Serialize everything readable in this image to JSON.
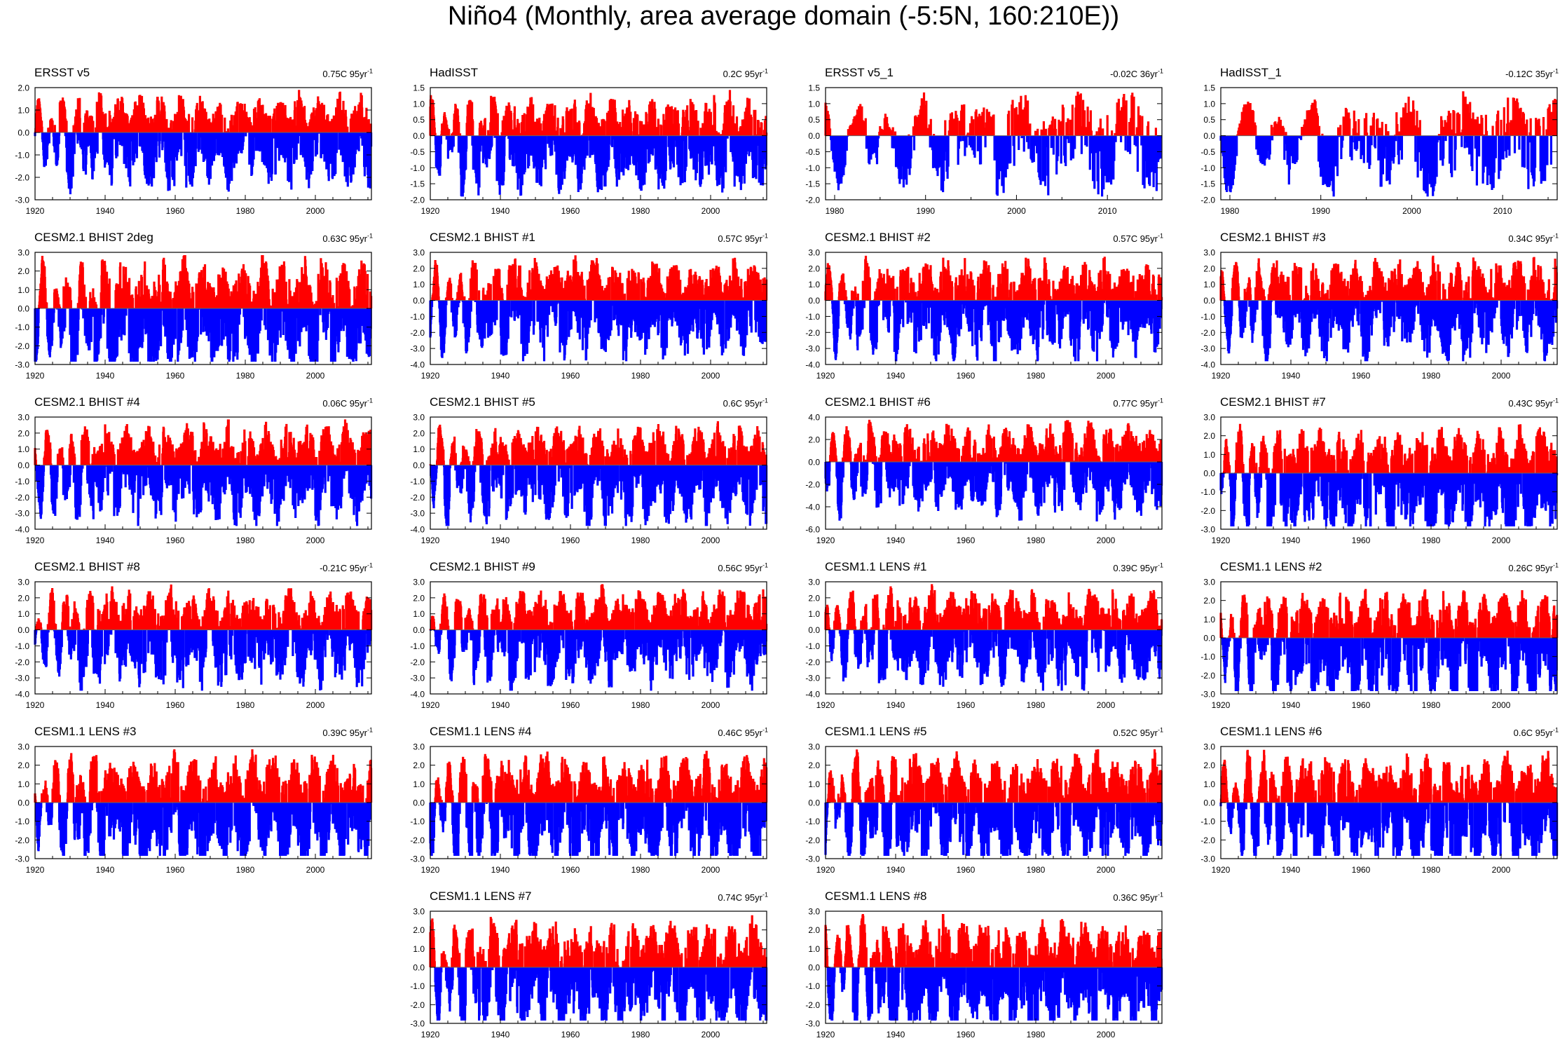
{
  "figure": {
    "title": "Niño4 (Monthly, area average domain (-5:5N, 160:210E))",
    "positive_color": "#ff0000",
    "negative_color": "#0000ff"
  },
  "chart_data": [
    {
      "type": "area",
      "title": "ERSST v5",
      "trend": "0.75C 95yr",
      "trend_unit_exp": "-1",
      "x_range": [
        1920,
        2016
      ],
      "xticks": [
        1920,
        1940,
        1960,
        1980,
        2000
      ],
      "ylim": [
        -3.0,
        2.0
      ],
      "yticks": [
        2.0,
        1.0,
        0.0,
        -1.0,
        -2.0,
        -3.0
      ],
      "ytick_labels": [
        "2.0",
        "1.0",
        "0.0",
        "-1.0",
        "-2.0",
        "-3.0"
      ],
      "baseline": 0.0
    },
    {
      "type": "area",
      "title": "HadISST",
      "trend": "0.2C 95yr",
      "trend_unit_exp": "-1",
      "x_range": [
        1920,
        2016
      ],
      "xticks": [
        1920,
        1940,
        1960,
        1980,
        2000
      ],
      "ylim": [
        -2.0,
        1.5
      ],
      "yticks": [
        1.5,
        1.0,
        0.5,
        0.0,
        -0.5,
        -1.0,
        -1.5,
        -2.0
      ],
      "ytick_labels": [
        "1.5",
        "1.0",
        "0.5",
        "0.0",
        "-0.5",
        "-1.0",
        "-1.5",
        "-2.0"
      ],
      "baseline": 0.0
    },
    {
      "type": "area",
      "title": "ERSST v5_1",
      "trend": "-0.02C 36yr",
      "trend_unit_exp": "-1",
      "x_range": [
        1979,
        2016
      ],
      "xticks": [
        1980,
        1990,
        2000,
        2010
      ],
      "ylim": [
        -2.0,
        1.5
      ],
      "yticks": [
        1.5,
        1.0,
        0.5,
        0.0,
        -0.5,
        -1.0,
        -1.5,
        -2.0
      ],
      "ytick_labels": [
        "1.5",
        "1.0",
        "0.5",
        "0.0",
        "-0.5",
        "-1.0",
        "-1.5",
        "-2.0"
      ],
      "baseline": 0.0
    },
    {
      "type": "area",
      "title": "HadISST_1",
      "trend": "-0.12C 35yr",
      "trend_unit_exp": "-1",
      "x_range": [
        1979,
        2016
      ],
      "xticks": [
        1980,
        1990,
        2000,
        2010
      ],
      "ylim": [
        -2.0,
        1.5
      ],
      "yticks": [
        1.5,
        1.0,
        0.5,
        0.0,
        -0.5,
        -1.0,
        -1.5,
        -2.0
      ],
      "ytick_labels": [
        "1.5",
        "1.0",
        "0.5",
        "0.0",
        "-0.5",
        "-1.0",
        "-1.5",
        "-2.0"
      ],
      "baseline": 0.0
    },
    {
      "type": "area",
      "title": "CESM2.1 BHIST 2deg",
      "trend": "0.63C 95yr",
      "trend_unit_exp": "-1",
      "x_range": [
        1920,
        2016
      ],
      "xticks": [
        1920,
        1940,
        1960,
        1980,
        2000
      ],
      "ylim": [
        -3.0,
        3.0
      ],
      "yticks": [
        3.0,
        2.0,
        1.0,
        0.0,
        -1.0,
        -2.0,
        -3.0
      ],
      "ytick_labels": [
        "3.0",
        "2.0",
        "1.0",
        "0.0",
        "-1.0",
        "-2.0",
        "-3.0"
      ],
      "baseline": 0.0
    },
    {
      "type": "area",
      "title": "CESM2.1 BHIST #1",
      "trend": "0.57C 95yr",
      "trend_unit_exp": "-1",
      "x_range": [
        1920,
        2016
      ],
      "xticks": [
        1920,
        1940,
        1960,
        1980,
        2000
      ],
      "ylim": [
        -4.0,
        3.0
      ],
      "yticks": [
        3.0,
        2.0,
        1.0,
        0.0,
        -1.0,
        -2.0,
        -3.0,
        -4.0
      ],
      "ytick_labels": [
        "3.0",
        "2.0",
        "1.0",
        "0.0",
        "-1.0",
        "-2.0",
        "-3.0",
        "-4.0"
      ],
      "baseline": 0.0
    },
    {
      "type": "area",
      "title": "CESM2.1 BHIST #2",
      "trend": "0.57C 95yr",
      "trend_unit_exp": "-1",
      "x_range": [
        1920,
        2016
      ],
      "xticks": [
        1920,
        1940,
        1960,
        1980,
        2000
      ],
      "ylim": [
        -4.0,
        3.0
      ],
      "yticks": [
        3.0,
        2.0,
        1.0,
        0.0,
        -1.0,
        -2.0,
        -3.0,
        -4.0
      ],
      "ytick_labels": [
        "3.0",
        "2.0",
        "1.0",
        "0.0",
        "-1.0",
        "-2.0",
        "-3.0",
        "-4.0"
      ],
      "baseline": 0.0
    },
    {
      "type": "area",
      "title": "CESM2.1 BHIST #3",
      "trend": "0.34C 95yr",
      "trend_unit_exp": "-1",
      "x_range": [
        1920,
        2016
      ],
      "xticks": [
        1920,
        1940,
        1960,
        1980,
        2000
      ],
      "ylim": [
        -4.0,
        3.0
      ],
      "yticks": [
        3.0,
        2.0,
        1.0,
        0.0,
        -1.0,
        -2.0,
        -3.0,
        -4.0
      ],
      "ytick_labels": [
        "3.0",
        "2.0",
        "1.0",
        "0.0",
        "-1.0",
        "-2.0",
        "-3.0",
        "-4.0"
      ],
      "baseline": 0.0
    },
    {
      "type": "area",
      "title": "CESM2.1 BHIST #4",
      "trend": "0.06C 95yr",
      "trend_unit_exp": "-1",
      "x_range": [
        1920,
        2016
      ],
      "xticks": [
        1920,
        1940,
        1960,
        1980,
        2000
      ],
      "ylim": [
        -4.0,
        3.0
      ],
      "yticks": [
        3.0,
        2.0,
        1.0,
        0.0,
        -1.0,
        -2.0,
        -3.0,
        -4.0
      ],
      "ytick_labels": [
        "3.0",
        "2.0",
        "1.0",
        "0.0",
        "-1.0",
        "-2.0",
        "-3.0",
        "-4.0"
      ],
      "baseline": 0.0
    },
    {
      "type": "area",
      "title": "CESM2.1 BHIST #5",
      "trend": "0.6C 95yr",
      "trend_unit_exp": "-1",
      "x_range": [
        1920,
        2016
      ],
      "xticks": [
        1920,
        1940,
        1960,
        1980,
        2000
      ],
      "ylim": [
        -4.0,
        3.0
      ],
      "yticks": [
        3.0,
        2.0,
        1.0,
        0.0,
        -1.0,
        -2.0,
        -3.0,
        -4.0
      ],
      "ytick_labels": [
        "3.0",
        "2.0",
        "1.0",
        "0.0",
        "-1.0",
        "-2.0",
        "-3.0",
        "-4.0"
      ],
      "baseline": 0.0
    },
    {
      "type": "area",
      "title": "CESM2.1 BHIST #6",
      "trend": "0.77C 95yr",
      "trend_unit_exp": "-1",
      "x_range": [
        1920,
        2016
      ],
      "xticks": [
        1920,
        1940,
        1960,
        1980,
        2000
      ],
      "ylim": [
        -6.0,
        4.0
      ],
      "yticks": [
        4.0,
        2.0,
        0.0,
        -2.0,
        -4.0,
        -6.0
      ],
      "ytick_labels": [
        "4.0",
        "2.0",
        "0.0",
        "-2.0",
        "-4.0",
        "-6.0"
      ],
      "baseline": 0.0
    },
    {
      "type": "area",
      "title": "CESM2.1 BHIST #7",
      "trend": "0.43C 95yr",
      "trend_unit_exp": "-1",
      "x_range": [
        1920,
        2016
      ],
      "xticks": [
        1920,
        1940,
        1960,
        1980,
        2000
      ],
      "ylim": [
        -3.0,
        3.0
      ],
      "yticks": [
        3.0,
        2.0,
        1.0,
        0.0,
        -1.0,
        -2.0,
        -3.0
      ],
      "ytick_labels": [
        "3.0",
        "2.0",
        "1.0",
        "0.0",
        "-1.0",
        "-2.0",
        "-3.0"
      ],
      "baseline": 0.0
    },
    {
      "type": "area",
      "title": "CESM2.1 BHIST #8",
      "trend": "-0.21C 95yr",
      "trend_unit_exp": "-1",
      "x_range": [
        1920,
        2016
      ],
      "xticks": [
        1920,
        1940,
        1960,
        1980,
        2000
      ],
      "ylim": [
        -4.0,
        3.0
      ],
      "yticks": [
        3.0,
        2.0,
        1.0,
        0.0,
        -1.0,
        -2.0,
        -3.0,
        -4.0
      ],
      "ytick_labels": [
        "3.0",
        "2.0",
        "1.0",
        "0.0",
        "-1.0",
        "-2.0",
        "-3.0",
        "-4.0"
      ],
      "baseline": 0.0
    },
    {
      "type": "area",
      "title": "CESM2.1 BHIST #9",
      "trend": "0.56C 95yr",
      "trend_unit_exp": "-1",
      "x_range": [
        1920,
        2016
      ],
      "xticks": [
        1920,
        1940,
        1960,
        1980,
        2000
      ],
      "ylim": [
        -4.0,
        3.0
      ],
      "yticks": [
        3.0,
        2.0,
        1.0,
        0.0,
        -1.0,
        -2.0,
        -3.0,
        -4.0
      ],
      "ytick_labels": [
        "3.0",
        "2.0",
        "1.0",
        "0.0",
        "-1.0",
        "-2.0",
        "-3.0",
        "-4.0"
      ],
      "baseline": 0.0
    },
    {
      "type": "area",
      "title": "CESM1.1 LENS #1",
      "trend": "0.39C 95yr",
      "trend_unit_exp": "-1",
      "x_range": [
        1920,
        2016
      ],
      "xticks": [
        1920,
        1940,
        1960,
        1980,
        2000
      ],
      "ylim": [
        -4.0,
        3.0
      ],
      "yticks": [
        3.0,
        2.0,
        1.0,
        0.0,
        -1.0,
        -2.0,
        -3.0,
        -4.0
      ],
      "ytick_labels": [
        "3.0",
        "2.0",
        "1.0",
        "0.0",
        "-1.0",
        "-2.0",
        "-3.0",
        "-4.0"
      ],
      "baseline": 0.0
    },
    {
      "type": "area",
      "title": "CESM1.1 LENS #2",
      "trend": "0.26C 95yr",
      "trend_unit_exp": "-1",
      "x_range": [
        1920,
        2016
      ],
      "xticks": [
        1920,
        1940,
        1960,
        1980,
        2000
      ],
      "ylim": [
        -3.0,
        3.0
      ],
      "yticks": [
        3.0,
        2.0,
        1.0,
        0.0,
        -1.0,
        -2.0,
        -3.0
      ],
      "ytick_labels": [
        "3.0",
        "2.0",
        "1.0",
        "0.0",
        "-1.0",
        "-2.0",
        "-3.0"
      ],
      "baseline": 0.0
    },
    {
      "type": "area",
      "title": "CESM1.1 LENS #3",
      "trend": "0.39C 95yr",
      "trend_unit_exp": "-1",
      "x_range": [
        1920,
        2016
      ],
      "xticks": [
        1920,
        1940,
        1960,
        1980,
        2000
      ],
      "ylim": [
        -3.0,
        3.0
      ],
      "yticks": [
        3.0,
        2.0,
        1.0,
        0.0,
        -1.0,
        -2.0,
        -3.0
      ],
      "ytick_labels": [
        "3.0",
        "2.0",
        "1.0",
        "0.0",
        "-1.0",
        "-2.0",
        "-3.0"
      ],
      "baseline": 0.0
    },
    {
      "type": "area",
      "title": "CESM1.1 LENS #4",
      "trend": "0.46C 95yr",
      "trend_unit_exp": "-1",
      "x_range": [
        1920,
        2016
      ],
      "xticks": [
        1920,
        1940,
        1960,
        1980,
        2000
      ],
      "ylim": [
        -3.0,
        3.0
      ],
      "yticks": [
        3.0,
        2.0,
        1.0,
        0.0,
        -1.0,
        -2.0,
        -3.0
      ],
      "ytick_labels": [
        "3.0",
        "2.0",
        "1.0",
        "0.0",
        "-1.0",
        "-2.0",
        "-3.0"
      ],
      "baseline": 0.0
    },
    {
      "type": "area",
      "title": "CESM1.1 LENS #5",
      "trend": "0.52C 95yr",
      "trend_unit_exp": "-1",
      "x_range": [
        1920,
        2016
      ],
      "xticks": [
        1920,
        1940,
        1960,
        1980,
        2000
      ],
      "ylim": [
        -3.0,
        3.0
      ],
      "yticks": [
        3.0,
        2.0,
        1.0,
        0.0,
        -1.0,
        -2.0,
        -3.0
      ],
      "ytick_labels": [
        "3.0",
        "2.0",
        "1.0",
        "0.0",
        "-1.0",
        "-2.0",
        "-3.0"
      ],
      "baseline": 0.0
    },
    {
      "type": "area",
      "title": "CESM1.1 LENS #6",
      "trend": "0.6C 95yr",
      "trend_unit_exp": "-1",
      "x_range": [
        1920,
        2016
      ],
      "xticks": [
        1920,
        1940,
        1960,
        1980,
        2000
      ],
      "ylim": [
        -3.0,
        3.0
      ],
      "yticks": [
        3.0,
        2.0,
        1.0,
        0.0,
        -1.0,
        -2.0,
        -3.0
      ],
      "ytick_labels": [
        "3.0",
        "2.0",
        "1.0",
        "0.0",
        "-1.0",
        "-2.0",
        "-3.0"
      ],
      "baseline": 0.0
    },
    {
      "type": "area",
      "title": "CESM1.1 LENS #7",
      "trend": "0.74C 95yr",
      "trend_unit_exp": "-1",
      "x_range": [
        1920,
        2016
      ],
      "xticks": [
        1920,
        1940,
        1960,
        1980,
        2000
      ],
      "ylim": [
        -3.0,
        3.0
      ],
      "yticks": [
        3.0,
        2.0,
        1.0,
        0.0,
        -1.0,
        -2.0,
        -3.0
      ],
      "ytick_labels": [
        "3.0",
        "2.0",
        "1.0",
        "0.0",
        "-1.0",
        "-2.0",
        "-3.0"
      ],
      "baseline": 0.0
    },
    {
      "type": "area",
      "title": "CESM1.1 LENS #8",
      "trend": "0.36C 95yr",
      "trend_unit_exp": "-1",
      "x_range": [
        1920,
        2016
      ],
      "xticks": [
        1920,
        1940,
        1960,
        1980,
        2000
      ],
      "ylim": [
        -3.0,
        3.0
      ],
      "yticks": [
        3.0,
        2.0,
        1.0,
        0.0,
        -1.0,
        -2.0,
        -3.0
      ],
      "ytick_labels": [
        "3.0",
        "2.0",
        "1.0",
        "0.0",
        "-1.0",
        "-2.0",
        "-3.0"
      ],
      "baseline": 0.0
    }
  ]
}
